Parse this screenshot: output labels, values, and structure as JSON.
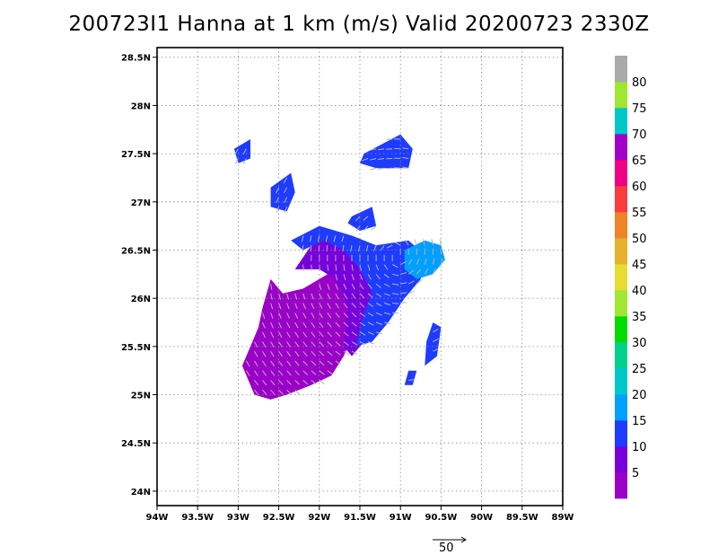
{
  "title": "200723I1 Hanna at 1 km (m/s) Valid 20200723 2330Z",
  "map": {
    "lon_labels": [
      "94W",
      "93.5W",
      "93W",
      "92.5W",
      "92W",
      "91.5W",
      "91W",
      "90.5W",
      "90W",
      "89.5W",
      "89W"
    ],
    "lat_labels": [
      "28.5N",
      "28N",
      "27.5N",
      "27N",
      "26.5N",
      "26N",
      "25.5N",
      "25N",
      "24.5N",
      "24N"
    ],
    "lon_range": [
      -94,
      -89
    ],
    "lat_range": [
      23.85,
      28.6
    ],
    "grid": "dotted"
  },
  "colorbar": {
    "labels": [
      "5",
      "10",
      "15",
      "20",
      "25",
      "30",
      "35",
      "40",
      "45",
      "50",
      "55",
      "60",
      "65",
      "70",
      "75",
      "80"
    ],
    "colors": [
      "#9a00c8",
      "#7800dc",
      "#1e3cff",
      "#00a0ff",
      "#00c8c8",
      "#00d28c",
      "#00dc00",
      "#a0e632",
      "#e6dc32",
      "#e6af2d",
      "#f08228",
      "#fa3c3c",
      "#f00082",
      "#a000c8",
      "#00c8c8",
      "#a0e632",
      "#aaaaaa"
    ]
  },
  "reference_vector": {
    "label": "50"
  },
  "regions": [
    {
      "color": "#9a00c8",
      "points": [
        [
          -92.8,
          25.0
        ],
        [
          -92.95,
          25.3
        ],
        [
          -92.85,
          25.5
        ],
        [
          -92.75,
          25.7
        ],
        [
          -92.7,
          25.9
        ],
        [
          -92.6,
          26.2
        ],
        [
          -92.45,
          26.05
        ],
        [
          -92.2,
          26.1
        ],
        [
          -92.0,
          26.2
        ],
        [
          -91.8,
          26.3
        ],
        [
          -91.6,
          26.1
        ],
        [
          -91.55,
          25.7
        ],
        [
          -91.7,
          25.4
        ],
        [
          -91.85,
          25.2
        ],
        [
          -92.1,
          25.1
        ],
        [
          -92.4,
          25.0
        ],
        [
          -92.6,
          24.95
        ]
      ]
    },
    {
      "color": "#7800dc",
      "points": [
        [
          -92.3,
          26.3
        ],
        [
          -92.1,
          26.55
        ],
        [
          -91.9,
          26.7
        ],
        [
          -91.7,
          26.6
        ],
        [
          -91.5,
          26.35
        ],
        [
          -91.35,
          26.1
        ],
        [
          -91.2,
          25.9
        ],
        [
          -91.4,
          25.6
        ],
        [
          -91.6,
          25.4
        ],
        [
          -91.7,
          25.5
        ],
        [
          -91.65,
          25.9
        ],
        [
          -91.8,
          26.2
        ],
        [
          -92.0,
          26.3
        ]
      ]
    },
    {
      "color": "#1e3cff",
      "points": [
        [
          -92.35,
          26.6
        ],
        [
          -92.0,
          26.75
        ],
        [
          -91.6,
          26.65
        ],
        [
          -91.3,
          26.55
        ],
        [
          -90.9,
          26.6
        ],
        [
          -90.7,
          26.45
        ],
        [
          -90.75,
          26.2
        ],
        [
          -90.95,
          26.0
        ],
        [
          -91.15,
          25.75
        ],
        [
          -91.35,
          25.55
        ],
        [
          -91.55,
          25.5
        ],
        [
          -91.45,
          25.85
        ],
        [
          -91.35,
          26.05
        ],
        [
          -91.5,
          26.3
        ],
        [
          -91.7,
          26.5
        ],
        [
          -91.95,
          26.6
        ],
        [
          -92.2,
          26.5
        ]
      ]
    },
    {
      "color": "#00a0ff",
      "points": [
        [
          -90.95,
          26.5
        ],
        [
          -90.7,
          26.6
        ],
        [
          -90.5,
          26.55
        ],
        [
          -90.45,
          26.4
        ],
        [
          -90.6,
          26.25
        ],
        [
          -90.8,
          26.2
        ],
        [
          -90.95,
          26.3
        ]
      ]
    },
    {
      "color": "#1e3cff",
      "points": [
        [
          -91.45,
          27.5
        ],
        [
          -91.0,
          27.7
        ],
        [
          -90.85,
          27.55
        ],
        [
          -90.9,
          27.35
        ],
        [
          -91.3,
          27.35
        ],
        [
          -91.5,
          27.4
        ]
      ]
    },
    {
      "color": "#1e3cff",
      "points": [
        [
          -92.6,
          27.15
        ],
        [
          -92.35,
          27.3
        ],
        [
          -92.3,
          27.1
        ],
        [
          -92.4,
          26.9
        ],
        [
          -92.6,
          26.95
        ]
      ]
    },
    {
      "color": "#1e3cff",
      "points": [
        [
          -91.6,
          26.85
        ],
        [
          -91.35,
          26.95
        ],
        [
          -91.3,
          26.75
        ],
        [
          -91.5,
          26.7
        ],
        [
          -91.65,
          26.78
        ]
      ]
    },
    {
      "color": "#1e3cff",
      "points": [
        [
          -93.05,
          27.55
        ],
        [
          -92.85,
          27.65
        ],
        [
          -92.85,
          27.45
        ],
        [
          -93.0,
          27.4
        ]
      ]
    },
    {
      "color": "#1e3cff",
      "points": [
        [
          -90.6,
          25.75
        ],
        [
          -90.5,
          25.7
        ],
        [
          -90.55,
          25.4
        ],
        [
          -90.7,
          25.3
        ],
        [
          -90.68,
          25.55
        ]
      ]
    },
    {
      "color": "#1e3cff",
      "points": [
        [
          -90.9,
          25.25
        ],
        [
          -90.8,
          25.25
        ],
        [
          -90.85,
          25.1
        ],
        [
          -90.95,
          25.1
        ]
      ]
    }
  ]
}
